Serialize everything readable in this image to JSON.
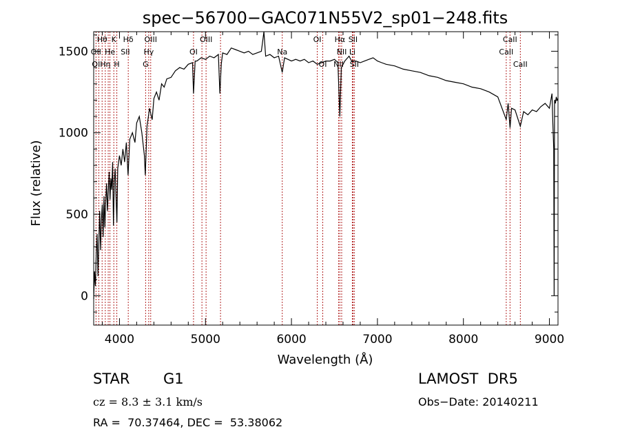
{
  "chart_data": {
    "type": "line",
    "title": "spec−56700−GAC071N55V2_sp01−248.fits",
    "xlabel": "Wavelength (Å)",
    "ylabel": "Flux (relative)",
    "xlim": [
      3700,
      9100
    ],
    "ylim": [
      -180,
      1620
    ],
    "xticks": [
      4000,
      5000,
      6000,
      7000,
      8000,
      9000
    ],
    "yticks": [
      0,
      500,
      1000,
      1500
    ],
    "line_color": "#000000",
    "marker_color": "#b22222",
    "series": [
      {
        "values": [
          [
            3700,
            -20
          ],
          [
            3710,
            150
          ],
          [
            3720,
            60
          ],
          [
            3730,
            260
          ],
          [
            3740,
            380
          ],
          [
            3750,
            120
          ],
          [
            3760,
            330
          ],
          [
            3770,
            520
          ],
          [
            3780,
            280
          ],
          [
            3790,
            470
          ],
          [
            3800,
            560
          ],
          [
            3810,
            360
          ],
          [
            3820,
            610
          ],
          [
            3830,
            420
          ],
          [
            3840,
            580
          ],
          [
            3850,
            690
          ],
          [
            3860,
            520
          ],
          [
            3870,
            640
          ],
          [
            3880,
            760
          ],
          [
            3890,
            590
          ],
          [
            3900,
            720
          ],
          [
            3910,
            650
          ],
          [
            3920,
            820
          ],
          [
            3930,
            430
          ],
          [
            3940,
            700
          ],
          [
            3950,
            780
          ],
          [
            3960,
            600
          ],
          [
            3970,
            450
          ],
          [
            3980,
            780
          ],
          [
            4000,
            860
          ],
          [
            4020,
            800
          ],
          [
            4040,
            900
          ],
          [
            4060,
            820
          ],
          [
            4080,
            940
          ],
          [
            4100,
            740
          ],
          [
            4120,
            960
          ],
          [
            4150,
            1000
          ],
          [
            4180,
            940
          ],
          [
            4200,
            1060
          ],
          [
            4230,
            1100
          ],
          [
            4260,
            1000
          ],
          [
            4290,
            860
          ],
          [
            4300,
            740
          ],
          [
            4320,
            1040
          ],
          [
            4350,
            1150
          ],
          [
            4380,
            1080
          ],
          [
            4400,
            1210
          ],
          [
            4430,
            1250
          ],
          [
            4460,
            1200
          ],
          [
            4490,
            1300
          ],
          [
            4520,
            1280
          ],
          [
            4550,
            1330
          ],
          [
            4600,
            1340
          ],
          [
            4650,
            1380
          ],
          [
            4700,
            1400
          ],
          [
            4750,
            1390
          ],
          [
            4800,
            1420
          ],
          [
            4850,
            1430
          ],
          [
            4861,
            1240
          ],
          [
            4880,
            1440
          ],
          [
            4900,
            1440
          ],
          [
            4950,
            1460
          ],
          [
            5000,
            1450
          ],
          [
            5050,
            1470
          ],
          [
            5100,
            1460
          ],
          [
            5150,
            1480
          ],
          [
            5168,
            1240
          ],
          [
            5184,
            1420
          ],
          [
            5200,
            1490
          ],
          [
            5250,
            1480
          ],
          [
            5300,
            1520
          ],
          [
            5350,
            1510
          ],
          [
            5400,
            1500
          ],
          [
            5450,
            1490
          ],
          [
            5500,
            1500
          ],
          [
            5550,
            1480
          ],
          [
            5600,
            1490
          ],
          [
            5650,
            1500
          ],
          [
            5680,
            1620
          ],
          [
            5700,
            1470
          ],
          [
            5750,
            1480
          ],
          [
            5800,
            1460
          ],
          [
            5850,
            1470
          ],
          [
            5893,
            1370
          ],
          [
            5920,
            1460
          ],
          [
            6000,
            1440
          ],
          [
            6050,
            1450
          ],
          [
            6100,
            1440
          ],
          [
            6150,
            1450
          ],
          [
            6200,
            1430
          ],
          [
            6250,
            1440
          ],
          [
            6300,
            1420
          ],
          [
            6350,
            1430
          ],
          [
            6400,
            1440
          ],
          [
            6450,
            1440
          ],
          [
            6500,
            1450
          ],
          [
            6540,
            1430
          ],
          [
            6563,
            1100
          ],
          [
            6580,
            1400
          ],
          [
            6620,
            1440
          ],
          [
            6670,
            1470
          ],
          [
            6700,
            1440
          ],
          [
            6750,
            1440
          ],
          [
            6800,
            1430
          ],
          [
            6850,
            1440
          ],
          [
            6900,
            1450
          ],
          [
            6950,
            1460
          ],
          [
            7000,
            1440
          ],
          [
            7050,
            1430
          ],
          [
            7100,
            1420
          ],
          [
            7200,
            1410
          ],
          [
            7300,
            1390
          ],
          [
            7400,
            1380
          ],
          [
            7500,
            1370
          ],
          [
            7600,
            1350
          ],
          [
            7700,
            1340
          ],
          [
            7800,
            1320
          ],
          [
            7900,
            1310
          ],
          [
            8000,
            1300
          ],
          [
            8100,
            1280
          ],
          [
            8200,
            1270
          ],
          [
            8300,
            1250
          ],
          [
            8400,
            1220
          ],
          [
            8498,
            1080
          ],
          [
            8520,
            1180
          ],
          [
            8542,
            1030
          ],
          [
            8560,
            1150
          ],
          [
            8600,
            1140
          ],
          [
            8662,
            1040
          ],
          [
            8700,
            1130
          ],
          [
            8750,
            1110
          ],
          [
            8800,
            1140
          ],
          [
            8850,
            1130
          ],
          [
            8900,
            1160
          ],
          [
            8950,
            1180
          ],
          [
            9000,
            1150
          ],
          [
            9030,
            1240
          ],
          [
            9040,
            1060
          ],
          [
            9050,
            900
          ],
          [
            9055,
            0
          ],
          [
            9060,
            1200
          ],
          [
            9070,
            1180
          ],
          [
            9080,
            1220
          ],
          [
            9090,
            1200
          ],
          [
            9100,
            1210
          ]
        ]
      }
    ],
    "lines": [
      {
        "w": 3727,
        "label": "OII",
        "row": 1
      },
      {
        "w": 3760,
        "label": "",
        "row": 0
      },
      {
        "w": 3798,
        "label": "",
        "row": 0
      },
      {
        "w": 3835,
        "label": "",
        "row": 0
      },
      {
        "w": 3869,
        "label": "",
        "row": 0
      },
      {
        "w": 3889,
        "label": "",
        "row": 0
      },
      {
        "w": 3934,
        "label": "K",
        "row": 0
      },
      {
        "w": 3969,
        "label": "H",
        "row": 2
      },
      {
        "w": 4102,
        "label": "Hδ",
        "row": 0
      },
      {
        "w": 4304,
        "label": "G",
        "row": 2
      },
      {
        "w": 4340,
        "label": "Hγ",
        "row": 1
      },
      {
        "w": 4363,
        "label": "OIII",
        "row": 0
      },
      {
        "w": 4861,
        "label": "",
        "row": 0
      },
      {
        "w": 4959,
        "label": "",
        "row": 0
      },
      {
        "w": 5007,
        "label": "OIII",
        "row": 0
      },
      {
        "w": 5175,
        "label": "",
        "row": 0
      },
      {
        "w": 5893,
        "label": "Na",
        "row": 1
      },
      {
        "w": 6300,
        "label": "OI",
        "row": 0
      },
      {
        "w": 6364,
        "label": "OI",
        "row": 2
      },
      {
        "w": 6548,
        "label": "",
        "row": 0
      },
      {
        "w": 6563,
        "label": "Hα",
        "row": 0
      },
      {
        "w": 6584,
        "label": "NII",
        "row": 1
      },
      {
        "w": 6708,
        "label": "Li",
        "row": 1
      },
      {
        "w": 6716,
        "label": "SII",
        "row": 0
      },
      {
        "w": 6731,
        "label": "",
        "row": 0
      },
      {
        "w": 8498,
        "label": "CaII",
        "row": 1
      },
      {
        "w": 8542,
        "label": "CaII",
        "row": 0
      },
      {
        "w": 8662,
        "label": "CaII",
        "row": 2
      }
    ],
    "extra_labels": [
      {
        "text": "Hθ",
        "w": 3798,
        "row": 0
      },
      {
        "text": "He",
        "w": 3889,
        "row": 1
      },
      {
        "text": "SII",
        "w": 4068,
        "row": 1
      },
      {
        "text": "OI",
        "w": 3727,
        "row": 2
      },
      {
        "text": "Hη",
        "w": 3835,
        "row": 2
      },
      {
        "text": "OI",
        "w": 4861,
        "row": 1
      },
      {
        "text": "NII",
        "w": 6548,
        "row": 2
      },
      {
        "text": "SII",
        "w": 6731,
        "row": 2
      }
    ]
  },
  "info": {
    "object_class": "STAR",
    "subclass": "G1",
    "survey": "LAMOST  DR5",
    "redshift": "cz = 8.3 ± 3.1 km/s",
    "obs_date": "Obs−Date: 20140211",
    "coords": "RA =  70.37464, DEC =  53.38062"
  }
}
